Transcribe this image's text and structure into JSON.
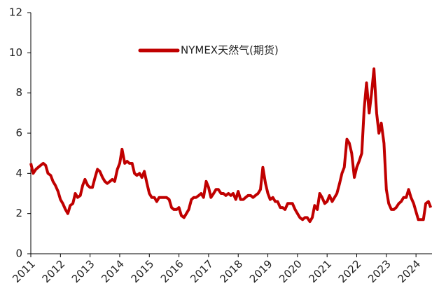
{
  "chart_data": {
    "type": "line",
    "legend": "top-center",
    "x": [
      2011.0,
      2011.08,
      2011.17,
      2011.25,
      2011.33,
      2011.42,
      2011.5,
      2011.58,
      2011.67,
      2011.75,
      2011.83,
      2011.92,
      2012.0,
      2012.08,
      2012.17,
      2012.25,
      2012.33,
      2012.42,
      2012.5,
      2012.58,
      2012.67,
      2012.75,
      2012.83,
      2012.92,
      2013.0,
      2013.08,
      2013.17,
      2013.25,
      2013.33,
      2013.42,
      2013.5,
      2013.58,
      2013.67,
      2013.75,
      2013.83,
      2013.92,
      2014.0,
      2014.08,
      2014.17,
      2014.25,
      2014.33,
      2014.42,
      2014.5,
      2014.58,
      2014.67,
      2014.75,
      2014.83,
      2014.92,
      2015.0,
      2015.08,
      2015.17,
      2015.25,
      2015.33,
      2015.42,
      2015.5,
      2015.58,
      2015.67,
      2015.75,
      2015.83,
      2015.92,
      2016.0,
      2016.08,
      2016.17,
      2016.25,
      2016.33,
      2016.42,
      2016.5,
      2016.58,
      2016.67,
      2016.75,
      2016.83,
      2016.92,
      2017.0,
      2017.08,
      2017.17,
      2017.25,
      2017.33,
      2017.42,
      2017.5,
      2017.58,
      2017.67,
      2017.75,
      2017.83,
      2017.92,
      2018.0,
      2018.08,
      2018.17,
      2018.25,
      2018.33,
      2018.42,
      2018.5,
      2018.58,
      2018.67,
      2018.75,
      2018.83,
      2018.92,
      2019.0,
      2019.08,
      2019.17,
      2019.25,
      2019.33,
      2019.42,
      2019.5,
      2019.58,
      2019.67,
      2019.75,
      2019.83,
      2019.92,
      2020.0,
      2020.08,
      2020.17,
      2020.25,
      2020.33,
      2020.42,
      2020.5,
      2020.58,
      2020.67,
      2020.75,
      2020.83,
      2020.92,
      2021.0,
      2021.08,
      2021.17,
      2021.25,
      2021.33,
      2021.42,
      2021.5,
      2021.58,
      2021.67,
      2021.75,
      2021.83,
      2021.92,
      2022.0,
      2022.08,
      2022.17,
      2022.25,
      2022.33,
      2022.42,
      2022.5,
      2022.58,
      2022.67,
      2022.75,
      2022.83,
      2022.92,
      2023.0,
      2023.08,
      2023.17,
      2023.25,
      2023.33,
      2023.42,
      2023.5,
      2023.58,
      2023.67,
      2023.75,
      2023.83,
      2023.92,
      2024.0,
      2024.08,
      2024.17,
      2024.25,
      2024.33,
      2024.42,
      2024.5
    ],
    "series": [
      {
        "name": "NYMEX天然气(期货)",
        "color": "#c00000",
        "values": [
          4.5,
          4.0,
          4.2,
          4.3,
          4.4,
          4.5,
          4.4,
          4.0,
          3.9,
          3.6,
          3.4,
          3.1,
          2.7,
          2.5,
          2.2,
          2.0,
          2.4,
          2.5,
          3.0,
          2.8,
          2.9,
          3.4,
          3.7,
          3.4,
          3.3,
          3.3,
          3.8,
          4.2,
          4.1,
          3.8,
          3.6,
          3.5,
          3.6,
          3.7,
          3.6,
          4.2,
          4.5,
          5.2,
          4.5,
          4.6,
          4.5,
          4.5,
          4.0,
          3.9,
          4.0,
          3.8,
          4.1,
          3.5,
          3.0,
          2.8,
          2.8,
          2.6,
          2.8,
          2.8,
          2.8,
          2.8,
          2.7,
          2.3,
          2.2,
          2.2,
          2.3,
          1.9,
          1.8,
          2.0,
          2.2,
          2.7,
          2.8,
          2.8,
          2.9,
          3.0,
          2.8,
          3.6,
          3.3,
          2.8,
          3.0,
          3.2,
          3.2,
          3.0,
          3.0,
          2.9,
          3.0,
          2.9,
          3.0,
          2.7,
          3.1,
          2.7,
          2.7,
          2.8,
          2.9,
          2.9,
          2.8,
          2.9,
          3.0,
          3.2,
          4.3,
          3.5,
          3.0,
          2.7,
          2.8,
          2.6,
          2.6,
          2.3,
          2.3,
          2.2,
          2.5,
          2.5,
          2.5,
          2.2,
          2.0,
          1.8,
          1.7,
          1.8,
          1.8,
          1.6,
          1.8,
          2.4,
          2.2,
          3.0,
          2.8,
          2.5,
          2.6,
          2.9,
          2.6,
          2.8,
          3.0,
          3.5,
          4.0,
          4.3,
          5.7,
          5.5,
          5.0,
          3.8,
          4.3,
          4.6,
          5.0,
          7.2,
          8.5,
          7.0,
          8.0,
          9.2,
          7.0,
          6.0,
          6.5,
          5.5,
          3.2,
          2.5,
          2.2,
          2.2,
          2.3,
          2.5,
          2.6,
          2.8,
          2.8,
          3.2,
          2.8,
          2.5,
          2.1,
          1.7,
          1.7,
          1.7,
          2.5,
          2.6,
          2.3
        ]
      }
    ],
    "xlim": [
      2011,
      2024.54
    ],
    "xticks": [
      2011,
      2012,
      2013,
      2014,
      2015,
      2016,
      2017,
      2018,
      2019,
      2020,
      2021,
      2022,
      2023,
      2024
    ],
    "ylim": [
      0,
      12
    ],
    "yticks": [
      0,
      2,
      4,
      6,
      8,
      10,
      12
    ],
    "grid": false
  }
}
